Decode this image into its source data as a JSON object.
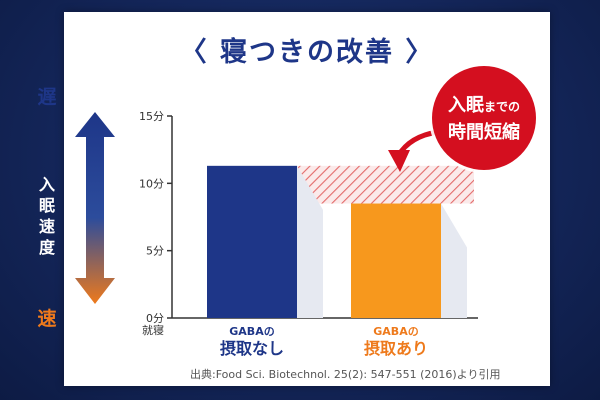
{
  "title": "〈 寝つきの改善 〉",
  "left_axis": {
    "top_word": "遅",
    "bottom_word": "速",
    "arrow_label": [
      "入",
      "眠",
      "速",
      "度"
    ]
  },
  "badge": {
    "line1_main": "入眠",
    "line1_small": "までの",
    "line2": "時間短縮"
  },
  "source": "出典:Food Sci. Biotechnol. 25(2): 547-551 (2016)より引用",
  "colors": {
    "title": "#1e3688",
    "bar_without": "#1e3688",
    "bar_with": "#f7981d",
    "badge": "#d40f1f",
    "hatch": "#e36b6b"
  },
  "chart_data": {
    "type": "bar",
    "categories": [
      "GABAの\n摂取なし",
      "GABAの\n摂取あり"
    ],
    "category_lines": [
      {
        "small": "GABAの",
        "big": "摂取なし"
      },
      {
        "small": "GABAの",
        "big": "摂取あり"
      }
    ],
    "values": [
      11.3,
      8.5
    ],
    "unit": "分",
    "ylim": [
      0,
      15
    ],
    "yticks": [
      0,
      5,
      10,
      15
    ],
    "ytick_labels": [
      "0分",
      "5分",
      "10分",
      "15分"
    ],
    "y_baseline_label": "就寝",
    "grid": false,
    "legend": "none",
    "annotation": "reduction band between 11.3 and 8.5"
  }
}
